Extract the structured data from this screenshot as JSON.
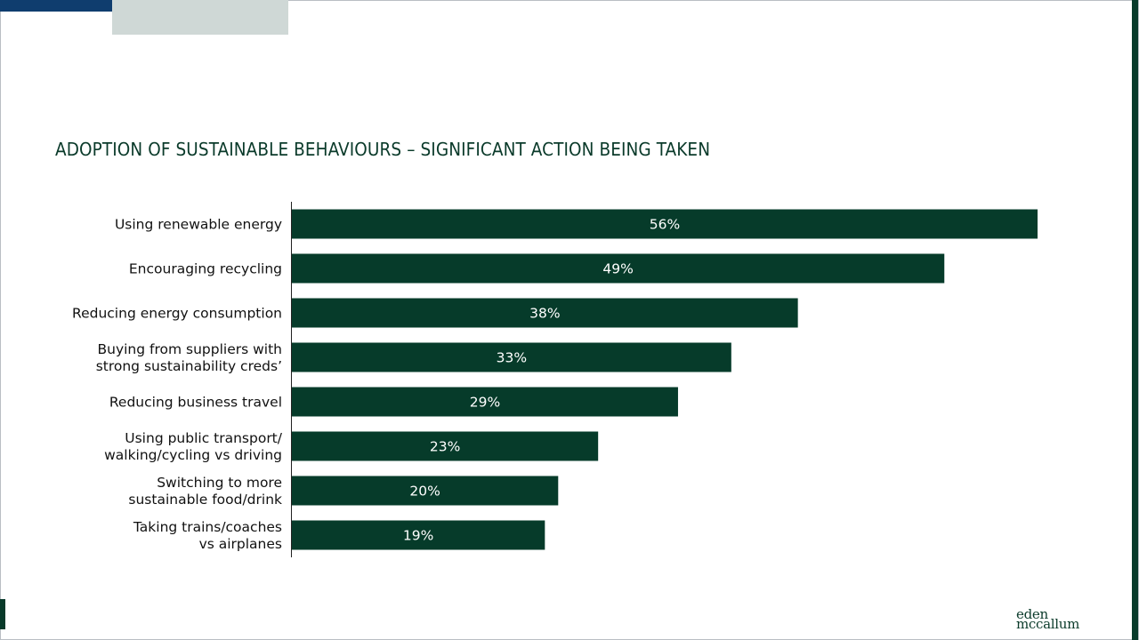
{
  "slide": {
    "title": "ADOPTION OF SUSTAINABLE BEHAVIOURS – SIGNIFICANT ACTION BEING TAKEN",
    "logo_line1": "eden",
    "logo_line2": "mccallum"
  },
  "colors": {
    "bar": "#063b2a",
    "title": "#0a3a2a",
    "accent_blue": "#0f3d6e",
    "accent_grey": "#cfd8d6"
  },
  "chart_data": {
    "type": "bar",
    "orientation": "horizontal",
    "title": "ADOPTION OF SUSTAINABLE BEHAVIOURS – SIGNIFICANT ACTION BEING TAKEN",
    "xlabel": "",
    "ylabel": "",
    "xlim": [
      0,
      60
    ],
    "grid": false,
    "legend": "none",
    "categories": [
      [
        "Using renewable energy"
      ],
      [
        "Encouraging recycling"
      ],
      [
        "Reducing energy consumption"
      ],
      [
        "Buying from suppliers with",
        "strong sustainability creds’"
      ],
      [
        "Reducing business travel"
      ],
      [
        "Using public transport/",
        "walking/cycling vs driving"
      ],
      [
        "Switching to more",
        "sustainable food/drink"
      ],
      [
        "Taking trains/coaches",
        "vs airplanes"
      ]
    ],
    "values": [
      56,
      49,
      38,
      33,
      29,
      23,
      20,
      19
    ],
    "data_labels": [
      "56%",
      "49%",
      "38%",
      "33%",
      "29%",
      "23%",
      "20%",
      "19%"
    ]
  }
}
